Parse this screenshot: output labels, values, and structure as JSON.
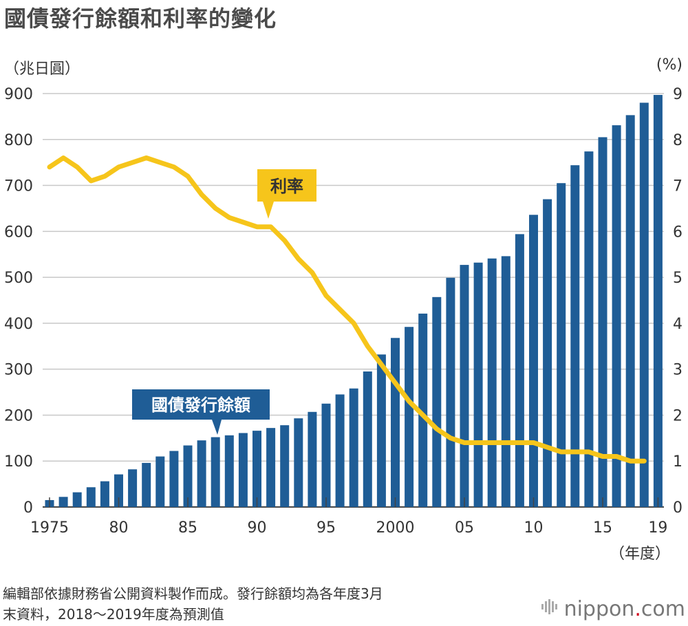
{
  "title": "國債發行餘額和利率的變化",
  "left_unit": "（兆日圓）",
  "right_unit": "(%)",
  "x_unit": "（年度）",
  "source_line1": "編輯部依據財務省公開資料製作而成。發行餘額均為各年度3月",
  "source_line2": "末資料，2018～2019年度為預測值",
  "brand_name": "nippon",
  "brand_dot": ".",
  "brand_suffix": "com",
  "chart_data": {
    "type": "bar",
    "x_tick_labels": [
      "1975",
      "80",
      "85",
      "90",
      "95",
      "2000",
      "05",
      "10",
      "15",
      "19"
    ],
    "y_left_ticks": [
      0,
      100,
      200,
      300,
      400,
      500,
      600,
      700,
      800,
      900
    ],
    "y_right_ticks": [
      0,
      1,
      2,
      3,
      4,
      5,
      6,
      7,
      8,
      9
    ],
    "ylim_left": [
      0,
      900
    ],
    "ylim_right": [
      0,
      9
    ],
    "grid": true,
    "years": [
      1975,
      1976,
      1977,
      1978,
      1979,
      1980,
      1981,
      1982,
      1983,
      1984,
      1985,
      1986,
      1987,
      1988,
      1989,
      1990,
      1991,
      1992,
      1993,
      1994,
      1995,
      1996,
      1997,
      1998,
      1999,
      2000,
      2001,
      2002,
      2003,
      2004,
      2005,
      2006,
      2007,
      2008,
      2009,
      2010,
      2011,
      2012,
      2013,
      2014,
      2015,
      2016,
      2017,
      2018,
      2019
    ],
    "series": [
      {
        "name": "國債發行餘額",
        "type": "bar",
        "axis": "left",
        "color": "#1f5d96",
        "values": [
          15,
          22,
          32,
          43,
          56,
          71,
          82,
          96,
          110,
          122,
          134,
          145,
          152,
          156,
          161,
          166,
          172,
          178,
          193,
          207,
          225,
          245,
          258,
          295,
          332,
          368,
          392,
          421,
          457,
          499,
          527,
          532,
          541,
          546,
          594,
          636,
          670,
          705,
          744,
          774,
          805,
          831,
          853,
          880,
          897
        ]
      },
      {
        "name": "利率",
        "type": "line",
        "axis": "right",
        "color": "#f6c51b",
        "values": [
          7.4,
          7.6,
          7.4,
          7.1,
          7.2,
          7.4,
          7.5,
          7.6,
          7.5,
          7.4,
          7.2,
          6.8,
          6.5,
          6.3,
          6.2,
          6.1,
          6.1,
          5.8,
          5.4,
          5.1,
          4.6,
          4.3,
          4.0,
          3.5,
          3.1,
          2.7,
          2.3,
          2.0,
          1.7,
          1.5,
          1.4,
          1.4,
          1.4,
          1.4,
          1.4,
          1.4,
          1.3,
          1.2,
          1.2,
          1.2,
          1.1,
          1.1,
          1.0,
          1.0,
          null
        ]
      }
    ],
    "annotations": [
      "利率",
      "國債發行餘額"
    ]
  }
}
